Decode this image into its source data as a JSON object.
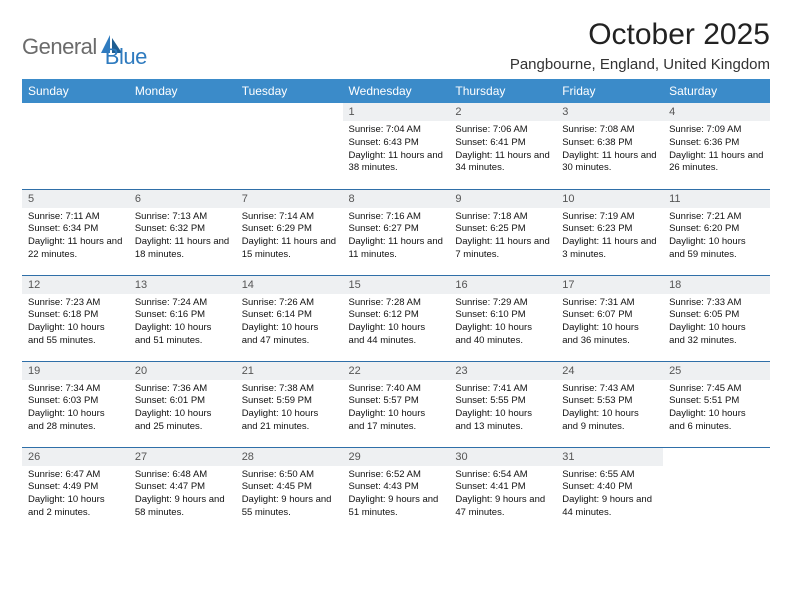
{
  "logo": {
    "word1": "General",
    "word2": "Blue"
  },
  "title": "October 2025",
  "location": "Pangbourne, England, United Kingdom",
  "colors": {
    "header_bg": "#3b8bc9",
    "header_text": "#ffffff",
    "daynum_bg": "#eef0f2",
    "row_divider": "#2f6fa8",
    "logo_gray": "#6b6b6b",
    "logo_blue": "#2f7bbf"
  },
  "typography": {
    "title_fontsize": 30,
    "location_fontsize": 15,
    "dayheader_fontsize": 12,
    "daynum_fontsize": 11,
    "body_fontsize": 9.5
  },
  "day_headers": [
    "Sunday",
    "Monday",
    "Tuesday",
    "Wednesday",
    "Thursday",
    "Friday",
    "Saturday"
  ],
  "weeks": [
    [
      {
        "n": "",
        "sunrise": "",
        "sunset": "",
        "daylight": ""
      },
      {
        "n": "",
        "sunrise": "",
        "sunset": "",
        "daylight": ""
      },
      {
        "n": "",
        "sunrise": "",
        "sunset": "",
        "daylight": ""
      },
      {
        "n": "1",
        "sunrise": "Sunrise: 7:04 AM",
        "sunset": "Sunset: 6:43 PM",
        "daylight": "Daylight: 11 hours and 38 minutes."
      },
      {
        "n": "2",
        "sunrise": "Sunrise: 7:06 AM",
        "sunset": "Sunset: 6:41 PM",
        "daylight": "Daylight: 11 hours and 34 minutes."
      },
      {
        "n": "3",
        "sunrise": "Sunrise: 7:08 AM",
        "sunset": "Sunset: 6:38 PM",
        "daylight": "Daylight: 11 hours and 30 minutes."
      },
      {
        "n": "4",
        "sunrise": "Sunrise: 7:09 AM",
        "sunset": "Sunset: 6:36 PM",
        "daylight": "Daylight: 11 hours and 26 minutes."
      }
    ],
    [
      {
        "n": "5",
        "sunrise": "Sunrise: 7:11 AM",
        "sunset": "Sunset: 6:34 PM",
        "daylight": "Daylight: 11 hours and 22 minutes."
      },
      {
        "n": "6",
        "sunrise": "Sunrise: 7:13 AM",
        "sunset": "Sunset: 6:32 PM",
        "daylight": "Daylight: 11 hours and 18 minutes."
      },
      {
        "n": "7",
        "sunrise": "Sunrise: 7:14 AM",
        "sunset": "Sunset: 6:29 PM",
        "daylight": "Daylight: 11 hours and 15 minutes."
      },
      {
        "n": "8",
        "sunrise": "Sunrise: 7:16 AM",
        "sunset": "Sunset: 6:27 PM",
        "daylight": "Daylight: 11 hours and 11 minutes."
      },
      {
        "n": "9",
        "sunrise": "Sunrise: 7:18 AM",
        "sunset": "Sunset: 6:25 PM",
        "daylight": "Daylight: 11 hours and 7 minutes."
      },
      {
        "n": "10",
        "sunrise": "Sunrise: 7:19 AM",
        "sunset": "Sunset: 6:23 PM",
        "daylight": "Daylight: 11 hours and 3 minutes."
      },
      {
        "n": "11",
        "sunrise": "Sunrise: 7:21 AM",
        "sunset": "Sunset: 6:20 PM",
        "daylight": "Daylight: 10 hours and 59 minutes."
      }
    ],
    [
      {
        "n": "12",
        "sunrise": "Sunrise: 7:23 AM",
        "sunset": "Sunset: 6:18 PM",
        "daylight": "Daylight: 10 hours and 55 minutes."
      },
      {
        "n": "13",
        "sunrise": "Sunrise: 7:24 AM",
        "sunset": "Sunset: 6:16 PM",
        "daylight": "Daylight: 10 hours and 51 minutes."
      },
      {
        "n": "14",
        "sunrise": "Sunrise: 7:26 AM",
        "sunset": "Sunset: 6:14 PM",
        "daylight": "Daylight: 10 hours and 47 minutes."
      },
      {
        "n": "15",
        "sunrise": "Sunrise: 7:28 AM",
        "sunset": "Sunset: 6:12 PM",
        "daylight": "Daylight: 10 hours and 44 minutes."
      },
      {
        "n": "16",
        "sunrise": "Sunrise: 7:29 AM",
        "sunset": "Sunset: 6:10 PM",
        "daylight": "Daylight: 10 hours and 40 minutes."
      },
      {
        "n": "17",
        "sunrise": "Sunrise: 7:31 AM",
        "sunset": "Sunset: 6:07 PM",
        "daylight": "Daylight: 10 hours and 36 minutes."
      },
      {
        "n": "18",
        "sunrise": "Sunrise: 7:33 AM",
        "sunset": "Sunset: 6:05 PM",
        "daylight": "Daylight: 10 hours and 32 minutes."
      }
    ],
    [
      {
        "n": "19",
        "sunrise": "Sunrise: 7:34 AM",
        "sunset": "Sunset: 6:03 PM",
        "daylight": "Daylight: 10 hours and 28 minutes."
      },
      {
        "n": "20",
        "sunrise": "Sunrise: 7:36 AM",
        "sunset": "Sunset: 6:01 PM",
        "daylight": "Daylight: 10 hours and 25 minutes."
      },
      {
        "n": "21",
        "sunrise": "Sunrise: 7:38 AM",
        "sunset": "Sunset: 5:59 PM",
        "daylight": "Daylight: 10 hours and 21 minutes."
      },
      {
        "n": "22",
        "sunrise": "Sunrise: 7:40 AM",
        "sunset": "Sunset: 5:57 PM",
        "daylight": "Daylight: 10 hours and 17 minutes."
      },
      {
        "n": "23",
        "sunrise": "Sunrise: 7:41 AM",
        "sunset": "Sunset: 5:55 PM",
        "daylight": "Daylight: 10 hours and 13 minutes."
      },
      {
        "n": "24",
        "sunrise": "Sunrise: 7:43 AM",
        "sunset": "Sunset: 5:53 PM",
        "daylight": "Daylight: 10 hours and 9 minutes."
      },
      {
        "n": "25",
        "sunrise": "Sunrise: 7:45 AM",
        "sunset": "Sunset: 5:51 PM",
        "daylight": "Daylight: 10 hours and 6 minutes."
      }
    ],
    [
      {
        "n": "26",
        "sunrise": "Sunrise: 6:47 AM",
        "sunset": "Sunset: 4:49 PM",
        "daylight": "Daylight: 10 hours and 2 minutes."
      },
      {
        "n": "27",
        "sunrise": "Sunrise: 6:48 AM",
        "sunset": "Sunset: 4:47 PM",
        "daylight": "Daylight: 9 hours and 58 minutes."
      },
      {
        "n": "28",
        "sunrise": "Sunrise: 6:50 AM",
        "sunset": "Sunset: 4:45 PM",
        "daylight": "Daylight: 9 hours and 55 minutes."
      },
      {
        "n": "29",
        "sunrise": "Sunrise: 6:52 AM",
        "sunset": "Sunset: 4:43 PM",
        "daylight": "Daylight: 9 hours and 51 minutes."
      },
      {
        "n": "30",
        "sunrise": "Sunrise: 6:54 AM",
        "sunset": "Sunset: 4:41 PM",
        "daylight": "Daylight: 9 hours and 47 minutes."
      },
      {
        "n": "31",
        "sunrise": "Sunrise: 6:55 AM",
        "sunset": "Sunset: 4:40 PM",
        "daylight": "Daylight: 9 hours and 44 minutes."
      },
      {
        "n": "",
        "sunrise": "",
        "sunset": "",
        "daylight": ""
      }
    ]
  ]
}
